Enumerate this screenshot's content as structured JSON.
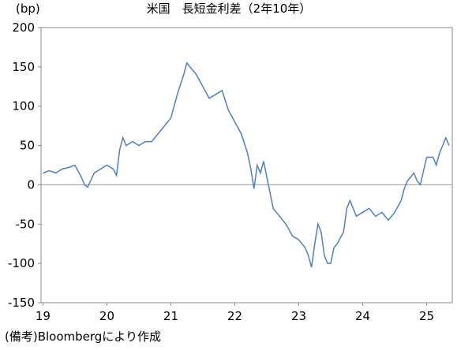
{
  "chart_data": {
    "type": "line",
    "title": "米国　長短金利差（2年10年）",
    "y_label": "(bp)",
    "note": "(備考)Bloombergにより作成",
    "x": [
      19.0,
      19.1,
      19.2,
      19.3,
      19.4,
      19.5,
      19.6,
      19.65,
      19.7,
      19.8,
      19.9,
      20.0,
      20.1,
      20.15,
      20.2,
      20.25,
      20.3,
      20.4,
      20.5,
      20.6,
      20.7,
      20.8,
      20.9,
      21.0,
      21.1,
      21.2,
      21.25,
      21.3,
      21.4,
      21.5,
      21.6,
      21.7,
      21.8,
      21.9,
      22.0,
      22.1,
      22.2,
      22.25,
      22.3,
      22.35,
      22.4,
      22.45,
      22.5,
      22.55,
      22.6,
      22.7,
      22.8,
      22.9,
      23.0,
      23.1,
      23.15,
      23.2,
      23.25,
      23.3,
      23.35,
      23.4,
      23.45,
      23.5,
      23.55,
      23.6,
      23.7,
      23.75,
      23.8,
      23.9,
      24.0,
      24.1,
      24.2,
      24.3,
      24.4,
      24.5,
      24.6,
      24.65,
      24.7,
      24.75,
      24.8,
      24.85,
      24.9,
      25.0,
      25.1,
      25.15,
      25.2,
      25.25,
      25.3,
      25.35
    ],
    "series": [
      {
        "name": "長短金利差",
        "color": "#4f7fbf",
        "values": [
          15,
          18,
          15,
          20,
          22,
          25,
          10,
          0,
          -3,
          15,
          20,
          25,
          20,
          12,
          45,
          60,
          50,
          55,
          50,
          55,
          55,
          65,
          75,
          85,
          115,
          140,
          155,
          150,
          140,
          125,
          110,
          115,
          120,
          95,
          80,
          65,
          40,
          20,
          -5,
          25,
          15,
          30,
          10,
          -10,
          -30,
          -40,
          -50,
          -65,
          -70,
          -80,
          -90,
          -105,
          -75,
          -50,
          -60,
          -90,
          -100,
          -100,
          -80,
          -75,
          -60,
          -30,
          -20,
          -40,
          -35,
          -30,
          -40,
          -35,
          -45,
          -35,
          -20,
          -5,
          5,
          10,
          15,
          5,
          0,
          35,
          35,
          25,
          40,
          50,
          60,
          50
        ]
      }
    ],
    "xlim": [
      18.97,
      25.4
    ],
    "xticks": [
      19,
      20,
      21,
      22,
      23,
      24,
      25
    ],
    "ylim": [
      -150,
      200
    ],
    "yticks": [
      -150,
      -100,
      -50,
      0,
      50,
      100,
      150,
      200
    ]
  }
}
